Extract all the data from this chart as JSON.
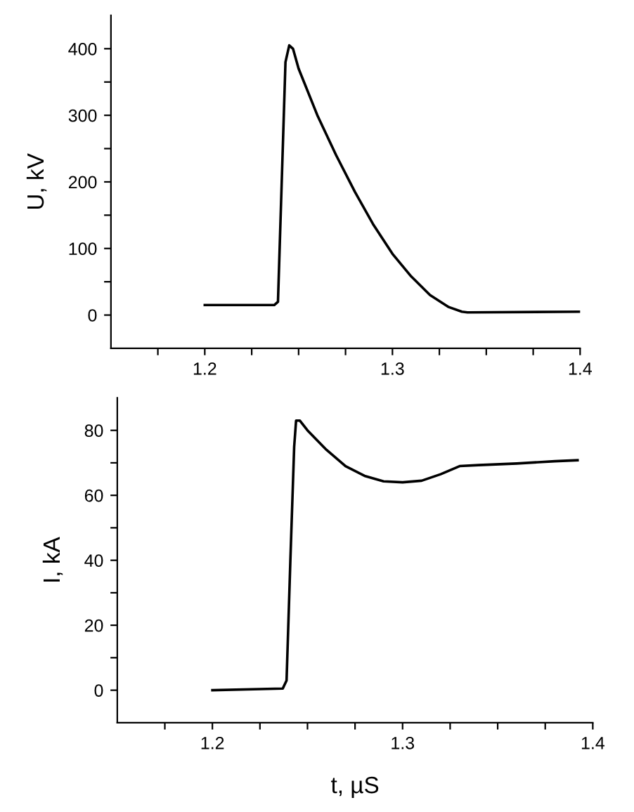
{
  "chart_data": [
    {
      "type": "line",
      "ylabel": "U, kV",
      "xlim": [
        1.15,
        1.4
      ],
      "ylim": [
        -50,
        450
      ],
      "xticks": [
        {
          "value": 1.175,
          "label": null
        },
        1.2,
        {
          "value": 1.225,
          "label": null
        },
        {
          "value": 1.25,
          "label": null
        },
        {
          "value": 1.275,
          "label": null
        },
        1.3,
        {
          "value": 1.325,
          "label": null
        },
        {
          "value": 1.35,
          "label": null
        },
        {
          "value": 1.375,
          "label": null
        },
        1.4
      ],
      "yticks": [
        0,
        {
          "value": 50,
          "label": null
        },
        100,
        {
          "value": 150,
          "label": null
        },
        200,
        {
          "value": 250,
          "label": null
        },
        300,
        {
          "value": 350,
          "label": null
        },
        400
      ],
      "series": [
        {
          "color": "#000000",
          "x": [
            1.2,
            1.237,
            1.239,
            1.241,
            1.243,
            1.245,
            1.247,
            1.25,
            1.26,
            1.27,
            1.28,
            1.29,
            1.3,
            1.31,
            1.32,
            1.33,
            1.337,
            1.34,
            1.4
          ],
          "values": [
            15,
            15,
            20,
            200,
            380,
            405,
            400,
            370,
            300,
            240,
            185,
            135,
            92,
            58,
            30,
            12,
            5,
            4,
            5
          ]
        }
      ]
    },
    {
      "type": "line",
      "xlabel": "t, µS",
      "ylabel": "I, kA",
      "xlim": [
        1.15,
        1.4
      ],
      "ylim": [
        -10,
        90
      ],
      "xticks": [
        {
          "value": 1.175,
          "label": null
        },
        1.2,
        {
          "value": 1.225,
          "label": null
        },
        {
          "value": 1.25,
          "label": null
        },
        {
          "value": 1.275,
          "label": null
        },
        1.3,
        {
          "value": 1.325,
          "label": null
        },
        {
          "value": 1.35,
          "label": null
        },
        {
          "value": 1.375,
          "label": null
        },
        1.4
      ],
      "yticks": [
        0,
        {
          "value": 10,
          "label": null
        },
        20,
        {
          "value": 30,
          "label": null
        },
        40,
        {
          "value": 50,
          "label": null
        },
        60,
        {
          "value": 70,
          "label": null
        },
        80
      ],
      "series": [
        {
          "color": "#000000",
          "x": [
            1.2,
            1.237,
            1.239,
            1.241,
            1.243,
            1.244,
            1.246,
            1.25,
            1.26,
            1.27,
            1.28,
            1.29,
            1.3,
            1.31,
            1.32,
            1.33,
            1.34,
            1.36,
            1.38,
            1.392
          ],
          "values": [
            0,
            0.5,
            3,
            40,
            75,
            83,
            83,
            80,
            74,
            69,
            66,
            64.3,
            64,
            64.5,
            66.5,
            69,
            69.3,
            69.8,
            70.5,
            70.8
          ]
        }
      ]
    }
  ]
}
